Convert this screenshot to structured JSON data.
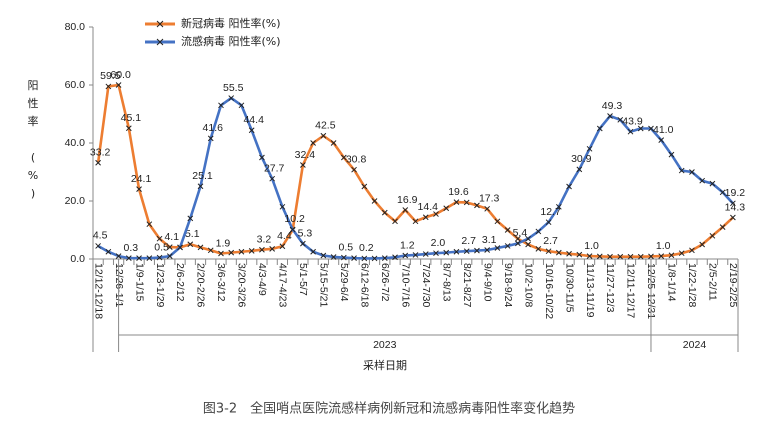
{
  "chart_data": {
    "type": "line",
    "caption": "图3-2　全国哨点医院流感样病例新冠和流感病毒阳性率变化趋势",
    "y_label": "阳性率 (%)",
    "x_label": "采样日期",
    "years": [
      "2023",
      "2024"
    ],
    "legend": "upper left",
    "grid": false,
    "ylim": [
      0,
      80
    ],
    "yticks": [
      {
        "value": 0,
        "label": "0.0"
      },
      {
        "value": 20,
        "label": "20.0"
      },
      {
        "value": 40,
        "label": "40.0"
      },
      {
        "value": 60,
        "label": "60.0"
      },
      {
        "value": 80,
        "label": "80.0"
      }
    ],
    "categories": [
      "12/12-12/18",
      null,
      "12/26-1/1",
      null,
      "1/9-1/15",
      null,
      "1/23-1/29",
      null,
      "2/6-2/12",
      null,
      "2/20-2/26",
      null,
      "3/6-3/12",
      null,
      "3/20-3/26",
      null,
      "4/3-4/9",
      null,
      "4/17-4/23",
      null,
      "5/1-5/7",
      null,
      "5/15-5/21",
      null,
      "5/29-6/4",
      null,
      "6/12-6/18",
      null,
      "6/26-7/2",
      null,
      "7/10-7/16",
      null,
      "7/24-7/30",
      null,
      "8/7-8/13",
      null,
      "8/21-8/27",
      null,
      "9/4-9/10",
      null,
      "9/18-9/24",
      null,
      "10/2-10/8",
      null,
      "10/16-10/22",
      null,
      "10/30-11/5",
      null,
      "11/13-11/19",
      null,
      "11/27-12/3",
      null,
      "12/11-12/17",
      null,
      "12/25-12/31",
      null,
      "1/8-1/14",
      null,
      "1/22-1/28",
      null,
      "2/5-2/11",
      null,
      "2/19-2/25"
    ],
    "series": [
      {
        "name": "新冠病毒  阳性率(%)",
        "color": "#ed7d31",
        "values": [
          33.2,
          59.5,
          60.0,
          45.1,
          24.1,
          12,
          7,
          4.1,
          4,
          5.1,
          4,
          3,
          1.9,
          2.2,
          2.5,
          2.8,
          3.2,
          3.5,
          4.4,
          10,
          32.4,
          40,
          42.5,
          40,
          35,
          30.8,
          25,
          20,
          16,
          13,
          16.9,
          13,
          14.4,
          15.5,
          17.5,
          19.6,
          19.5,
          18.5,
          17.3,
          13,
          10,
          7,
          5,
          3.5,
          2.7,
          2.2,
          1.8,
          1.5,
          1.0,
          0.9,
          0.8,
          0.8,
          0.8,
          0.8,
          0.9,
          1.0,
          1.3,
          2,
          3,
          5,
          8,
          11,
          14.3
        ],
        "value_labels": [
          "33.2",
          "59.5",
          "60.0",
          "45.1",
          "24.1",
          null,
          null,
          "4.1",
          null,
          "5.1",
          null,
          null,
          "1.9",
          null,
          null,
          null,
          "3.2",
          null,
          "4.4",
          null,
          "32.4",
          null,
          "42.5",
          null,
          null,
          "30.8",
          null,
          null,
          null,
          null,
          "16.9",
          null,
          "14.4",
          null,
          null,
          "19.6",
          null,
          null,
          "17.3",
          null,
          null,
          null,
          null,
          null,
          "2.7",
          null,
          null,
          null,
          "1.0",
          null,
          null,
          null,
          null,
          null,
          null,
          "1.0",
          null,
          null,
          null,
          null,
          null,
          null,
          "14.3"
        ]
      },
      {
        "name": "流感病毒  阳性率(%)",
        "color": "#4472c4",
        "values": [
          4.5,
          2.5,
          1,
          0.3,
          0.3,
          0.3,
          0.5,
          1,
          4,
          14,
          25.1,
          41.6,
          53,
          55.5,
          53,
          44.4,
          35,
          27.7,
          18,
          10.2,
          5.3,
          2.5,
          1.2,
          0.7,
          0.5,
          0.3,
          0.2,
          0.2,
          0.3,
          0.6,
          1.2,
          1.4,
          1.7,
          2.0,
          2.2,
          2.5,
          2.7,
          2.9,
          3.1,
          3.8,
          4.5,
          5.4,
          7,
          9.5,
          12.7,
          18,
          25,
          30.9,
          38,
          45,
          49.3,
          48,
          43.9,
          45,
          45,
          41.0,
          36,
          30.5,
          30,
          27,
          26,
          23,
          19.2
        ],
        "value_labels": [
          "4.5",
          null,
          null,
          "0.3",
          null,
          null,
          "0.5",
          null,
          null,
          null,
          "25.1",
          "41.6",
          null,
          "55.5",
          null,
          "44.4",
          null,
          "27.7",
          null,
          "10.2",
          "5.3",
          null,
          null,
          null,
          "0.5",
          null,
          "0.2",
          null,
          null,
          null,
          "1.2",
          null,
          null,
          "2.0",
          null,
          null,
          "2.7",
          null,
          "3.1",
          null,
          null,
          "5.4",
          null,
          null,
          "12.7",
          null,
          null,
          "30.9",
          null,
          null,
          "49.3",
          null,
          "43.9",
          null,
          null,
          "41.0",
          null,
          null,
          null,
          null,
          null,
          null,
          "19.2"
        ]
      }
    ]
  }
}
